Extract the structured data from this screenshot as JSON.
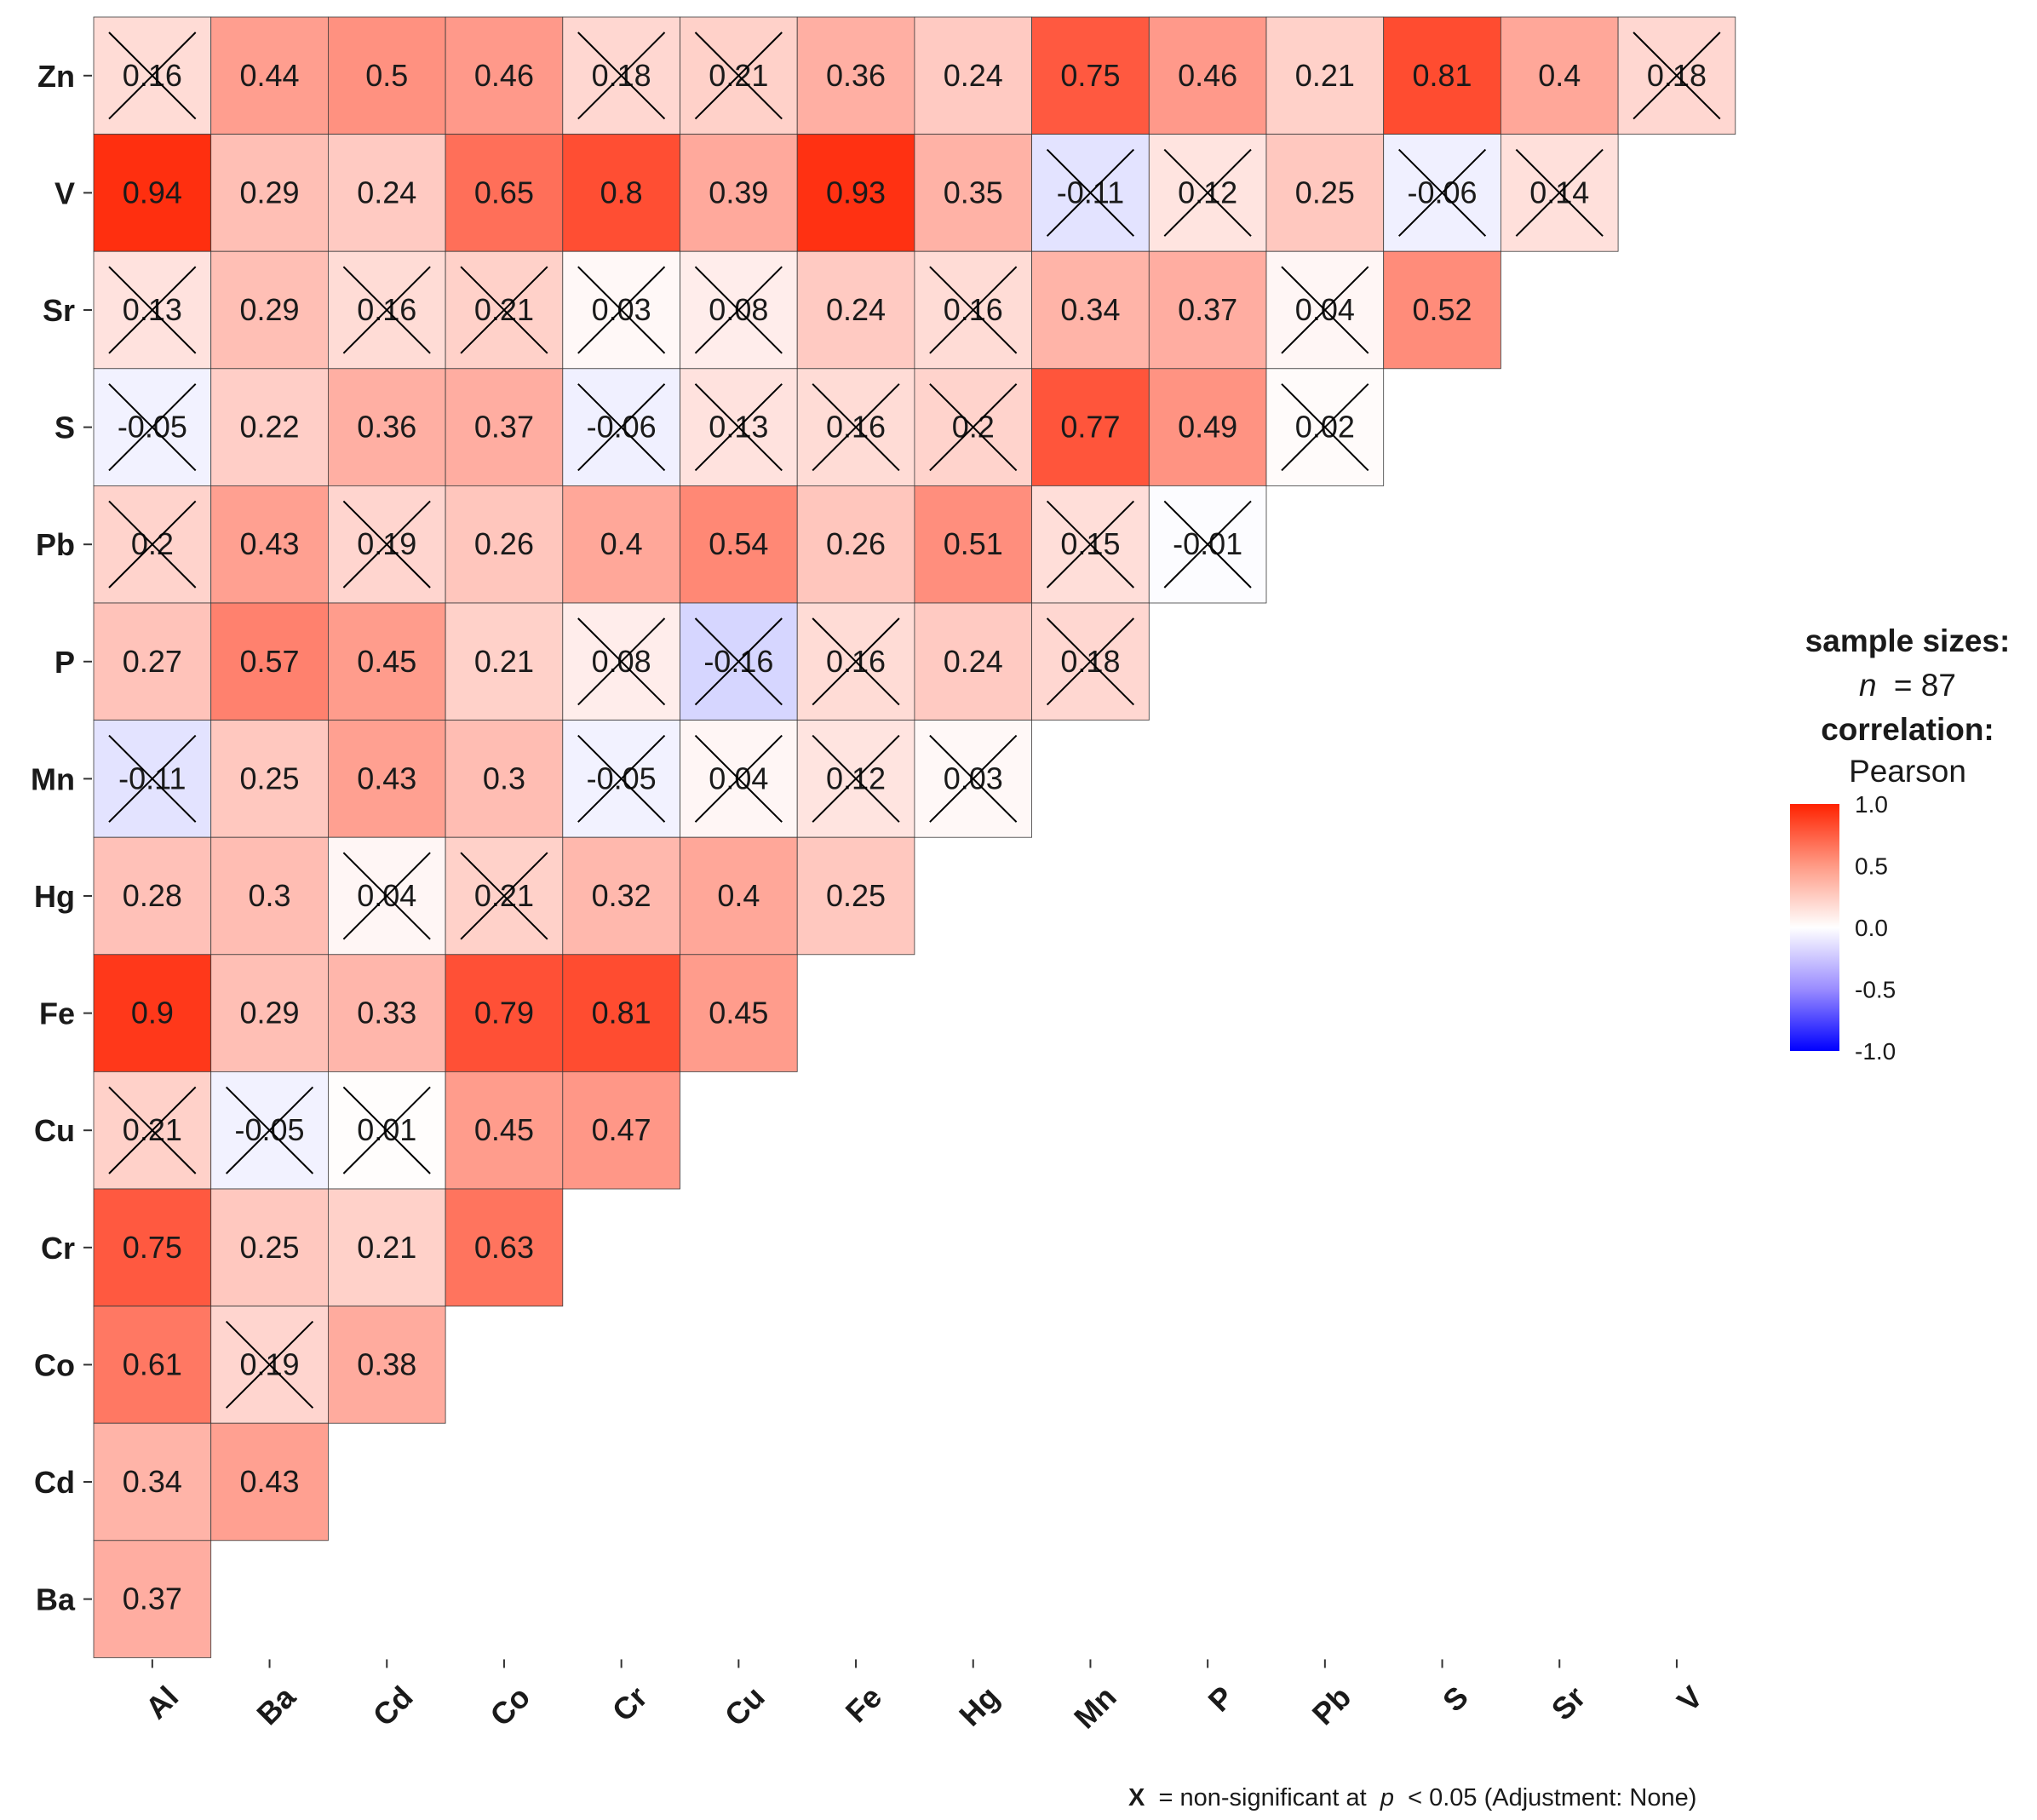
{
  "chart_data": {
    "type": "heatmap",
    "subtype": "lower-triangle correlation matrix",
    "x_categories": [
      "Al",
      "Ba",
      "Cd",
      "Co",
      "Cr",
      "Cu",
      "Fe",
      "Hg",
      "Mn",
      "P",
      "Pb",
      "S",
      "Sr",
      "V"
    ],
    "y_categories": [
      "Zn",
      "V",
      "Sr",
      "S",
      "Pb",
      "P",
      "Mn",
      "Hg",
      "Fe",
      "Cu",
      "Cr",
      "Co",
      "Cd",
      "Ba"
    ],
    "rows": [
      {
        "y": "Zn",
        "values": [
          0.16,
          0.44,
          0.5,
          0.46,
          0.18,
          0.21,
          0.36,
          0.24,
          0.75,
          0.46,
          0.21,
          0.81,
          0.4,
          0.18
        ],
        "ns": [
          true,
          false,
          false,
          false,
          true,
          true,
          false,
          false,
          false,
          false,
          false,
          false,
          false,
          true
        ]
      },
      {
        "y": "V",
        "values": [
          0.94,
          0.29,
          0.24,
          0.65,
          0.8,
          0.39,
          0.93,
          0.35,
          -0.11,
          0.12,
          0.25,
          -0.06,
          0.14
        ],
        "ns": [
          false,
          false,
          false,
          false,
          false,
          false,
          false,
          false,
          true,
          true,
          false,
          true,
          true
        ]
      },
      {
        "y": "Sr",
        "values": [
          0.13,
          0.29,
          0.16,
          0.21,
          0.03,
          0.08,
          0.24,
          0.16,
          0.34,
          0.37,
          0.04,
          0.52
        ],
        "ns": [
          true,
          false,
          true,
          true,
          true,
          true,
          false,
          true,
          false,
          false,
          true,
          false
        ]
      },
      {
        "y": "S",
        "values": [
          -0.05,
          0.22,
          0.36,
          0.37,
          -0.06,
          0.13,
          0.16,
          0.2,
          0.77,
          0.49,
          0.02
        ],
        "ns": [
          true,
          false,
          false,
          false,
          true,
          true,
          true,
          true,
          false,
          false,
          true
        ]
      },
      {
        "y": "Pb",
        "values": [
          0.2,
          0.43,
          0.19,
          0.26,
          0.4,
          0.54,
          0.26,
          0.51,
          0.15,
          -0.01
        ],
        "ns": [
          true,
          false,
          true,
          false,
          false,
          false,
          false,
          false,
          true,
          true
        ]
      },
      {
        "y": "P",
        "values": [
          0.27,
          0.57,
          0.45,
          0.21,
          0.08,
          -0.16,
          0.16,
          0.24,
          0.18
        ],
        "ns": [
          false,
          false,
          false,
          false,
          true,
          true,
          true,
          false,
          true
        ]
      },
      {
        "y": "Mn",
        "values": [
          -0.11,
          0.25,
          0.43,
          0.3,
          -0.05,
          0.04,
          0.12,
          0.03
        ],
        "ns": [
          true,
          false,
          false,
          false,
          true,
          true,
          true,
          true
        ]
      },
      {
        "y": "Hg",
        "values": [
          0.28,
          0.3,
          0.04,
          0.21,
          0.32,
          0.4,
          0.25
        ],
        "ns": [
          false,
          false,
          true,
          true,
          false,
          false,
          false
        ]
      },
      {
        "y": "Fe",
        "values": [
          0.9,
          0.29,
          0.33,
          0.79,
          0.81,
          0.45
        ],
        "ns": [
          false,
          false,
          false,
          false,
          false,
          false
        ]
      },
      {
        "y": "Cu",
        "values": [
          0.21,
          -0.05,
          0.01,
          0.45,
          0.47
        ],
        "ns": [
          true,
          true,
          true,
          false,
          false
        ]
      },
      {
        "y": "Cr",
        "values": [
          0.75,
          0.25,
          0.21,
          0.63
        ],
        "ns": [
          false,
          false,
          false,
          false
        ]
      },
      {
        "y": "Co",
        "values": [
          0.61,
          0.19,
          0.38
        ],
        "ns": [
          false,
          true,
          false
        ]
      },
      {
        "y": "Cd",
        "values": [
          0.34,
          0.43
        ],
        "ns": [
          false,
          false
        ]
      },
      {
        "y": "Ba",
        "values": [
          0.37
        ],
        "ns": [
          false
        ]
      }
    ],
    "color_scale": {
      "min": -1.0,
      "mid": 0.0,
      "max": 1.0,
      "low_color": "#0000ff",
      "mid_color": "#ffffff",
      "high_color": "#ff2200"
    },
    "legend_ticks": [
      "1.0",
      "0.5",
      "0.0",
      "-0.5",
      "-1.0"
    ]
  },
  "legend": {
    "title_sample": "sample sizes:",
    "n_label": "n",
    "n_value": "= 87",
    "title_corr": "correlation:",
    "method": "Pearson"
  },
  "caption": {
    "symbol": "X",
    "text_before_p": " = non-significant at ",
    "p_symbol": "p",
    "text_after_p": " < 0.05 (Adjustment: None)"
  }
}
